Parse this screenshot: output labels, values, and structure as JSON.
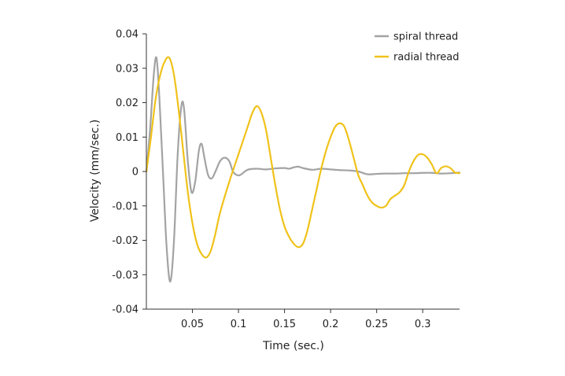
{
  "chart_data": {
    "type": "line",
    "title": "",
    "xlabel": "Time (sec.)",
    "ylabel": "Velocity (mm/sec.)",
    "xlim": [
      0,
      0.34
    ],
    "ylim": [
      -0.04,
      0.04
    ],
    "x_ticks": [
      0.05,
      0.1,
      0.15,
      0.2,
      0.25,
      0.3
    ],
    "x_tick_labels": [
      "0.05",
      "0.1",
      "0.15",
      "0.2",
      "0.25",
      "0.3"
    ],
    "y_ticks": [
      0.04,
      0.03,
      0.02,
      0.01,
      0,
      -0.01,
      -0.02,
      -0.03,
      -0.04
    ],
    "y_tick_labels": [
      "0.04",
      "0.03",
      "0.02",
      "0.01",
      "0",
      "-0.01",
      "-0.02",
      "-0.03",
      "-0.04"
    ],
    "grid": false,
    "legend_position": "top-right",
    "series": [
      {
        "name": "spiral thread",
        "color": "#a3a3a3",
        "points": [
          [
            0,
            0
          ],
          [
            0.004,
            0.012
          ],
          [
            0.008,
            0.028
          ],
          [
            0.011,
            0.033
          ],
          [
            0.014,
            0.022
          ],
          [
            0.018,
            0
          ],
          [
            0.022,
            -0.022
          ],
          [
            0.026,
            -0.032
          ],
          [
            0.03,
            -0.02
          ],
          [
            0.034,
            0.005
          ],
          [
            0.038,
            0.019
          ],
          [
            0.041,
            0.018
          ],
          [
            0.045,
            0.003
          ],
          [
            0.049,
            -0.006
          ],
          [
            0.053,
            -0.003
          ],
          [
            0.057,
            0.006
          ],
          [
            0.06,
            0.008
          ],
          [
            0.063,
            0.004
          ],
          [
            0.067,
            -0.001
          ],
          [
            0.071,
            -0.002
          ],
          [
            0.075,
            0
          ],
          [
            0.08,
            0.003
          ],
          [
            0.085,
            0.004
          ],
          [
            0.09,
            0.003
          ],
          [
            0.094,
            0
          ],
          [
            0.098,
            -0.001
          ],
          [
            0.102,
            -0.001
          ],
          [
            0.11,
            0.0005
          ],
          [
            0.12,
            0.0008
          ],
          [
            0.13,
            0.0006
          ],
          [
            0.14,
            0.0009
          ],
          [
            0.15,
            0.001
          ],
          [
            0.155,
            0.0008
          ],
          [
            0.16,
            0.0012
          ],
          [
            0.165,
            0.0014
          ],
          [
            0.17,
            0.001
          ],
          [
            0.18,
            0.0005
          ],
          [
            0.19,
            0.0008
          ],
          [
            0.2,
            0.0006
          ],
          [
            0.21,
            0.0004
          ],
          [
            0.22,
            0.0003
          ],
          [
            0.23,
            0
          ],
          [
            0.24,
            -0.0008
          ],
          [
            0.25,
            -0.0007
          ],
          [
            0.26,
            -0.0006
          ],
          [
            0.27,
            -0.0006
          ],
          [
            0.28,
            -0.0005
          ],
          [
            0.29,
            -0.0005
          ],
          [
            0.3,
            -0.0004
          ],
          [
            0.31,
            -0.0004
          ],
          [
            0.32,
            -0.0006
          ],
          [
            0.33,
            -0.0005
          ],
          [
            0.34,
            -0.0003
          ]
        ]
      },
      {
        "name": "radial thread",
        "color": "#f0c21a",
        "points": [
          [
            0,
            0
          ],
          [
            0.005,
            0.01
          ],
          [
            0.01,
            0.021
          ],
          [
            0.015,
            0.028
          ],
          [
            0.02,
            0.032
          ],
          [
            0.025,
            0.033
          ],
          [
            0.03,
            0.028
          ],
          [
            0.035,
            0.018
          ],
          [
            0.04,
            0.006
          ],
          [
            0.045,
            -0.006
          ],
          [
            0.05,
            -0.015
          ],
          [
            0.055,
            -0.021
          ],
          [
            0.06,
            -0.024
          ],
          [
            0.065,
            -0.025
          ],
          [
            0.07,
            -0.023
          ],
          [
            0.075,
            -0.018
          ],
          [
            0.08,
            -0.012
          ],
          [
            0.09,
            -0.003
          ],
          [
            0.1,
            0.005
          ],
          [
            0.11,
            0.013
          ],
          [
            0.115,
            0.017
          ],
          [
            0.12,
            0.019
          ],
          [
            0.125,
            0.017
          ],
          [
            0.13,
            0.012
          ],
          [
            0.135,
            0.004
          ],
          [
            0.14,
            -0.004
          ],
          [
            0.145,
            -0.011
          ],
          [
            0.15,
            -0.016
          ],
          [
            0.155,
            -0.019
          ],
          [
            0.16,
            -0.021
          ],
          [
            0.165,
            -0.022
          ],
          [
            0.17,
            -0.021
          ],
          [
            0.175,
            -0.017
          ],
          [
            0.18,
            -0.011
          ],
          [
            0.185,
            -0.005
          ],
          [
            0.19,
            0.001
          ],
          [
            0.195,
            0.006
          ],
          [
            0.2,
            0.01
          ],
          [
            0.205,
            0.013
          ],
          [
            0.21,
            0.014
          ],
          [
            0.215,
            0.013
          ],
          [
            0.22,
            0.009
          ],
          [
            0.225,
            0.004
          ],
          [
            0.23,
            -0.001
          ],
          [
            0.235,
            -0.004
          ],
          [
            0.24,
            -0.007
          ],
          [
            0.245,
            -0.009
          ],
          [
            0.25,
            -0.01
          ],
          [
            0.255,
            -0.0105
          ],
          [
            0.26,
            -0.01
          ],
          [
            0.265,
            -0.008
          ],
          [
            0.27,
            -0.007
          ],
          [
            0.275,
            -0.006
          ],
          [
            0.28,
            -0.004
          ],
          [
            0.285,
            0
          ],
          [
            0.29,
            0.003
          ],
          [
            0.295,
            0.0048
          ],
          [
            0.3,
            0.005
          ],
          [
            0.305,
            0.004
          ],
          [
            0.31,
            0.002
          ],
          [
            0.315,
            -0.0005
          ],
          [
            0.32,
            0.001
          ],
          [
            0.325,
            0.0015
          ],
          [
            0.33,
            0.001
          ],
          [
            0.335,
            -0.0003
          ],
          [
            0.34,
            -0.0005
          ]
        ]
      }
    ]
  }
}
